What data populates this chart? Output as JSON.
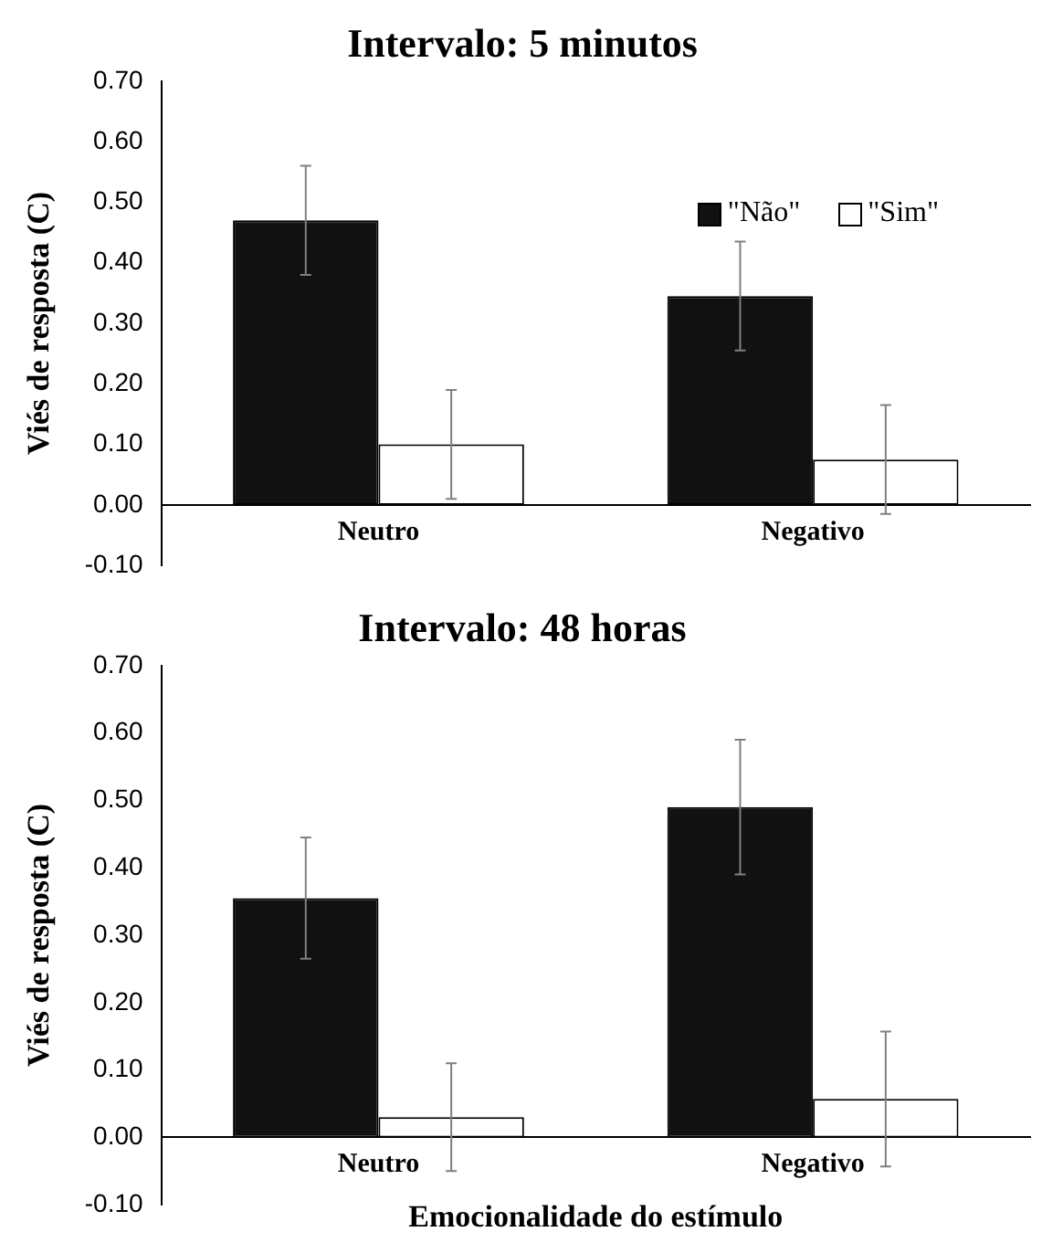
{
  "chart_data": [
    {
      "type": "bar",
      "title": "Intervalo: 5 minutos",
      "ylabel": "Viés de resposta (C)",
      "categories": [
        "Neutro",
        "Negativo"
      ],
      "series": [
        {
          "name": "\"Não\"",
          "color": "#111111",
          "values": [
            0.47,
            0.345
          ],
          "errors": [
            0.09,
            0.09
          ]
        },
        {
          "name": "\"Sim\"",
          "color": "#ffffff",
          "values": [
            0.1,
            0.075
          ],
          "errors": [
            0.09,
            0.09
          ]
        }
      ],
      "ylim": [
        -0.1,
        0.7
      ],
      "yticks": [
        {
          "value": -0.1,
          "label": "-0.10"
        },
        {
          "value": 0,
          "label": "0.00"
        },
        {
          "value": 0.1,
          "label": "0.10"
        },
        {
          "value": 0.2,
          "label": "0.20"
        },
        {
          "value": 0.3,
          "label": "0.30"
        },
        {
          "value": 0.4,
          "label": "0.40"
        },
        {
          "value": 0.5,
          "label": "0.50"
        },
        {
          "value": 0.6,
          "label": "0.60"
        },
        {
          "value": 0.7,
          "label": "0.70"
        }
      ],
      "grid": false,
      "legend": "top right"
    },
    {
      "type": "bar",
      "title": "Intervalo: 48 horas",
      "ylabel": "Viés de resposta (C)",
      "xlabel": "Emocionalidade do estímulo",
      "categories": [
        "Neutro",
        "Negativo"
      ],
      "series": [
        {
          "color": "#111111",
          "values": [
            0.355,
            0.49
          ],
          "errors": [
            0.09,
            0.1
          ]
        },
        {
          "color": "#ffffff",
          "values": [
            0.03,
            0.057
          ],
          "errors": [
            0.08,
            0.1
          ]
        }
      ],
      "ylim": [
        -0.1,
        0.7
      ],
      "yticks": [
        {
          "value": -0.1,
          "label": "-0.10"
        },
        {
          "value": 0,
          "label": "0.00"
        },
        {
          "value": 0.1,
          "label": "0.10"
        },
        {
          "value": 0.2,
          "label": "0.20"
        },
        {
          "value": 0.3,
          "label": "0.30"
        },
        {
          "value": 0.4,
          "label": "0.40"
        },
        {
          "value": 0.5,
          "label": "0.50"
        },
        {
          "value": 0.6,
          "label": "0.60"
        },
        {
          "value": 0.7,
          "label": "0.70"
        }
      ],
      "grid": false,
      "legend": false
    }
  ]
}
